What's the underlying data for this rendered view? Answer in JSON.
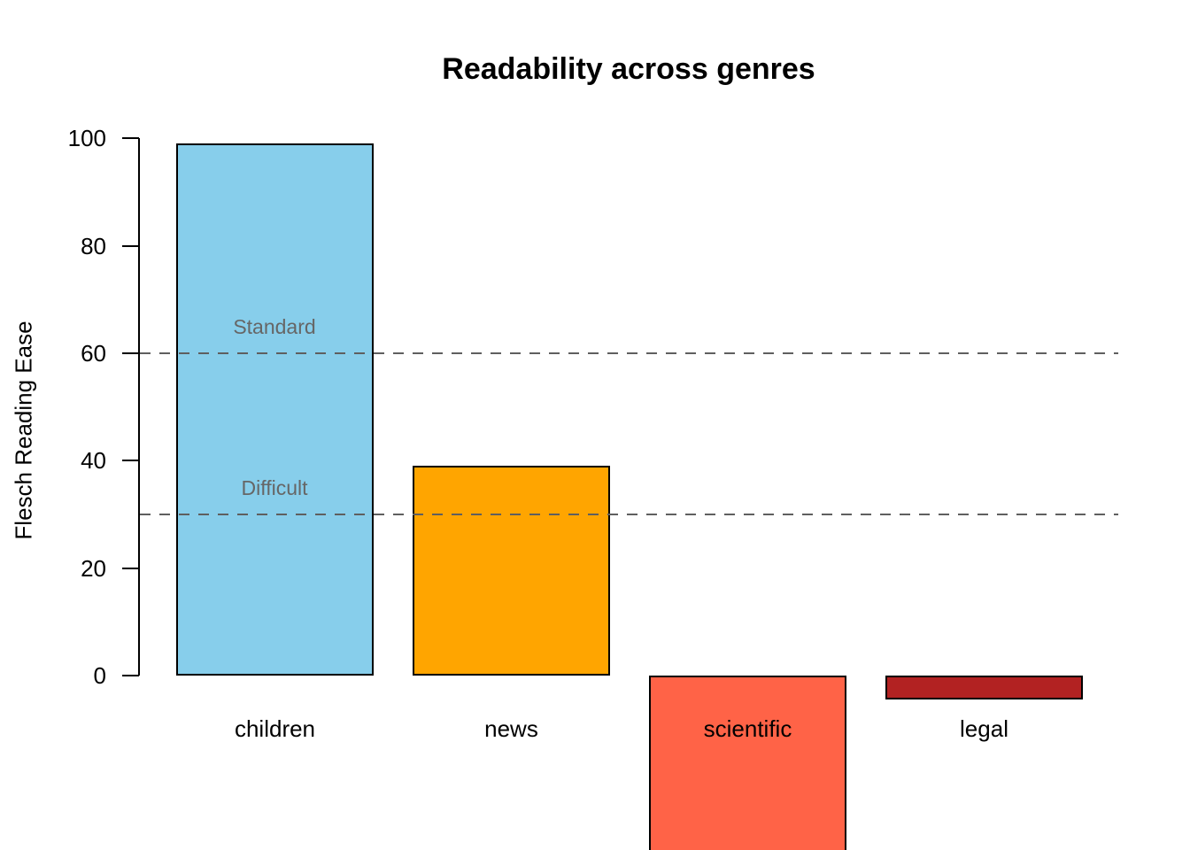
{
  "chart_data": {
    "type": "bar",
    "title": "Readability across genres",
    "xlabel": "",
    "ylabel": "Flesch Reading Ease",
    "categories": [
      "children",
      "news",
      "scientific",
      "legal"
    ],
    "values": [
      99,
      39,
      -33,
      -4.5
    ],
    "bar_colors": [
      "#87CEEB",
      "#FFA500",
      "#FF6347",
      "#B22222"
    ],
    "bar_edge_color": "#000000",
    "yticks": [
      0,
      20,
      40,
      60,
      80,
      100
    ],
    "ylim_visible": [
      -33,
      100
    ],
    "grid": false,
    "legend_position": "none",
    "reference_lines": [
      {
        "y": 60,
        "label": "Standard",
        "style": "dashed",
        "color": "#5f5f5f"
      },
      {
        "y": 30,
        "label": "Difficult",
        "style": "dashed",
        "color": "#5f5f5f"
      }
    ],
    "note": "scientific bar is clipped by the bottom edge of the image; -33 is the visible extent at the crop"
  }
}
